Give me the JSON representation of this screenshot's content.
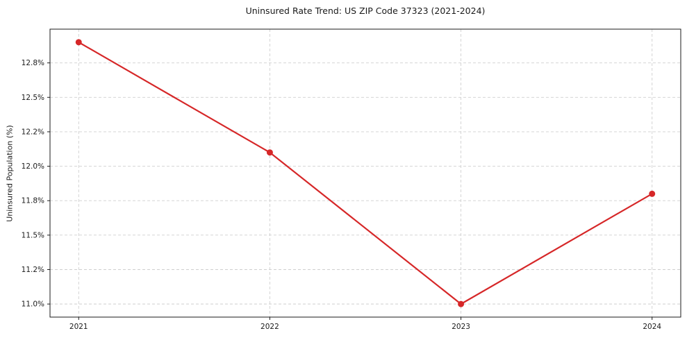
{
  "chart_data": {
    "type": "line",
    "title": "Uninsured Rate Trend: US ZIP Code 37323 (2021-2024)",
    "xlabel": "",
    "ylabel": "Uninsured Population (%)",
    "x": [
      2021,
      2022,
      2023,
      2024
    ],
    "series": [
      {
        "name": "Uninsured rate",
        "values": [
          12.9,
          12.1,
          11.0,
          11.8
        ]
      }
    ],
    "xlim": [
      2020.85,
      2024.15
    ],
    "ylim": [
      10.905,
      12.995
    ],
    "xticks": [
      2021,
      2022,
      2023,
      2024
    ],
    "xtick_labels": [
      "2021",
      "2022",
      "2023",
      "2024"
    ],
    "yticks": [
      11.0,
      11.25,
      11.5,
      11.75,
      12.0,
      12.25,
      12.5,
      12.75
    ],
    "ytick_labels": [
      "11.0%",
      "11.2%",
      "11.5%",
      "11.8%",
      "12.0%",
      "12.2%",
      "12.5%",
      "12.8%"
    ],
    "grid": true,
    "legend": "none",
    "colors": {
      "line": "#d62728",
      "marker": "#d62728",
      "grid": "#cfcfcf",
      "spine": "#1a1a1a",
      "tick_text": "#1a1a1a"
    }
  }
}
